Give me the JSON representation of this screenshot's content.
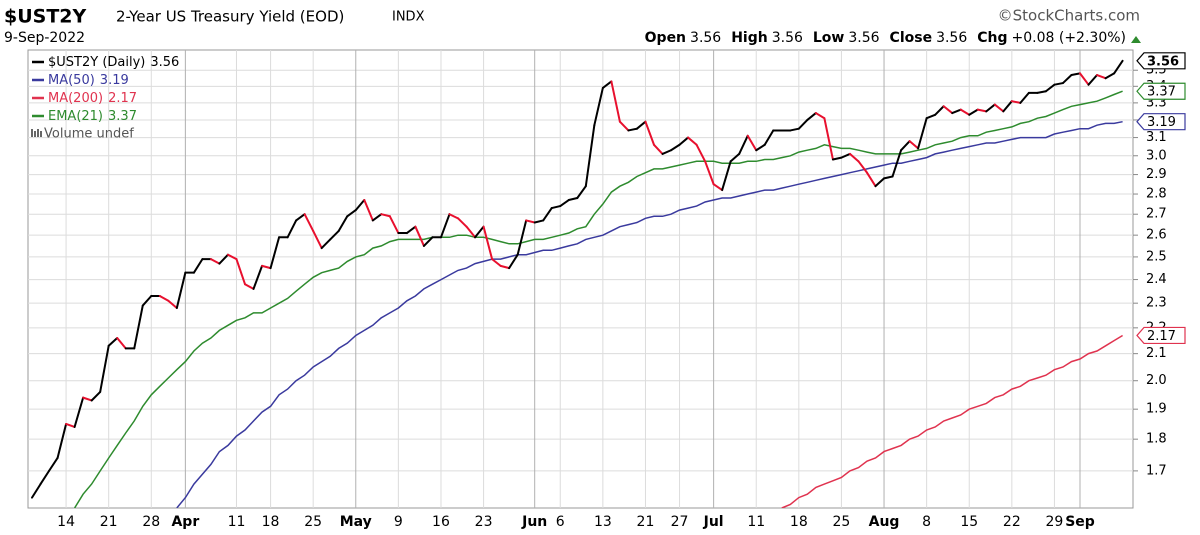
{
  "chart_data": {
    "type": "line",
    "header": {
      "symbol": "$UST2Y",
      "name": "2-Year US Treasury Yield (EOD)",
      "exchange": "INDX",
      "source": "©StockCharts.com",
      "date": "9-Sep-2022",
      "ohlc": [
        {
          "label": "Open",
          "value": 3.56
        },
        {
          "label": "High",
          "value": 3.56
        },
        {
          "label": "Low",
          "value": 3.56
        },
        {
          "label": "Close",
          "value": 3.56
        },
        {
          "label": "Chg",
          "value": "+0.08 (+2.30%)"
        }
      ]
    },
    "volume_legend": "Volume undef",
    "log_scale": true,
    "grid": true,
    "legend": "top-left",
    "ylim": [
      1.59,
      3.63
    ],
    "yticks": [
      1.7,
      1.8,
      1.9,
      {
        "value": 2,
        "label": "2.0"
      },
      2.1,
      2.2,
      2.3,
      2.4,
      2.5,
      2.6,
      2.7,
      2.8,
      2.9,
      {
        "value": 3,
        "label": "3.0"
      },
      3.1,
      3.2,
      3.3,
      3.4,
      3.5
    ],
    "categories": [
      null,
      null,
      null,
      null,
      "14",
      null,
      null,
      null,
      null,
      "21",
      null,
      null,
      null,
      null,
      "28",
      null,
      null,
      null,
      "Apr",
      null,
      null,
      null,
      null,
      null,
      "11",
      null,
      null,
      null,
      "18",
      null,
      null,
      null,
      null,
      "25",
      null,
      null,
      null,
      null,
      "May",
      null,
      null,
      null,
      null,
      "9",
      null,
      null,
      null,
      null,
      "16",
      null,
      null,
      null,
      null,
      "23",
      null,
      null,
      null,
      null,
      null,
      "Jun",
      null,
      null,
      "6",
      null,
      null,
      null,
      null,
      "13",
      null,
      null,
      null,
      null,
      "21",
      null,
      null,
      null,
      "27",
      null,
      null,
      null,
      "Jul",
      null,
      null,
      null,
      null,
      "11",
      null,
      null,
      null,
      null,
      "18",
      null,
      null,
      null,
      null,
      "25",
      null,
      null,
      null,
      null,
      "Aug",
      null,
      null,
      null,
      null,
      "8",
      null,
      null,
      null,
      null,
      "15",
      null,
      null,
      null,
      null,
      "22",
      null,
      null,
      null,
      null,
      "29",
      null,
      null,
      "Sep",
      null,
      null,
      null,
      null,
      null
    ],
    "series": [
      {
        "name": "$UST2Y (Daily)",
        "color": "#000000",
        "down_color": "#e8102e",
        "values": [
          1.62,
          1.66,
          1.7,
          1.74,
          1.85,
          1.84,
          1.94,
          1.93,
          1.96,
          2.13,
          2.16,
          2.12,
          2.12,
          2.29,
          2.33,
          2.33,
          2.31,
          2.28,
          2.43,
          2.43,
          2.49,
          2.49,
          2.47,
          2.51,
          2.49,
          2.38,
          2.36,
          2.46,
          2.45,
          2.59,
          2.59,
          2.67,
          2.7,
          2.62,
          2.54,
          2.58,
          2.62,
          2.69,
          2.72,
          2.77,
          2.67,
          2.7,
          2.69,
          2.61,
          2.61,
          2.64,
          2.55,
          2.59,
          2.59,
          2.7,
          2.68,
          2.64,
          2.59,
          2.64,
          2.49,
          2.46,
          2.45,
          2.51,
          2.67,
          2.66,
          2.67,
          2.73,
          2.74,
          2.77,
          2.78,
          2.84,
          3.17,
          3.39,
          3.43,
          3.19,
          3.14,
          3.15,
          3.19,
          3.06,
          3.01,
          3.03,
          3.06,
          3.1,
          3.06,
          2.97,
          2.85,
          2.82,
          2.97,
          3.01,
          3.11,
          3.03,
          3.06,
          3.14,
          3.14,
          3.14,
          3.15,
          3.2,
          3.24,
          3.21,
          2.98,
          2.99,
          3.01,
          2.97,
          2.91,
          2.84,
          2.88,
          2.89,
          3.03,
          3.08,
          3.04,
          3.21,
          3.23,
          3.28,
          3.24,
          3.26,
          3.23,
          3.26,
          3.25,
          3.29,
          3.25,
          3.31,
          3.3,
          3.36,
          3.36,
          3.37,
          3.41,
          3.42,
          3.47,
          3.48,
          3.41,
          3.47,
          3.45,
          3.48,
          3.56
        ]
      },
      {
        "name": "MA(50)",
        "color": "#3a3a9e",
        "values": [
          null,
          null,
          null,
          null,
          null,
          null,
          null,
          null,
          null,
          null,
          null,
          null,
          null,
          null,
          null,
          null,
          null,
          1.59,
          1.62,
          1.66,
          1.69,
          1.72,
          1.76,
          1.78,
          1.81,
          1.83,
          1.86,
          1.89,
          1.91,
          1.95,
          1.97,
          2.0,
          2.02,
          2.05,
          2.07,
          2.09,
          2.12,
          2.14,
          2.17,
          2.19,
          2.21,
          2.24,
          2.26,
          2.28,
          2.31,
          2.33,
          2.36,
          2.38,
          2.4,
          2.42,
          2.44,
          2.45,
          2.47,
          2.48,
          2.49,
          2.49,
          2.5,
          2.51,
          2.51,
          2.52,
          2.53,
          2.53,
          2.54,
          2.55,
          2.56,
          2.58,
          2.59,
          2.6,
          2.62,
          2.64,
          2.65,
          2.66,
          2.68,
          2.69,
          2.69,
          2.7,
          2.72,
          2.73,
          2.74,
          2.76,
          2.77,
          2.78,
          2.78,
          2.79,
          2.8,
          2.81,
          2.82,
          2.82,
          2.83,
          2.84,
          2.85,
          2.86,
          2.87,
          2.88,
          2.89,
          2.9,
          2.91,
          2.92,
          2.93,
          2.94,
          2.95,
          2.96,
          2.96,
          2.97,
          2.98,
          2.99,
          3.01,
          3.02,
          3.03,
          3.04,
          3.05,
          3.06,
          3.07,
          3.07,
          3.08,
          3.09,
          3.1,
          3.1,
          3.1,
          3.1,
          3.12,
          3.13,
          3.14,
          3.15,
          3.15,
          3.17,
          3.18,
          3.18,
          3.19
        ]
      },
      {
        "name": "MA(200)",
        "color": "#e0334f",
        "values": [
          null,
          null,
          null,
          null,
          null,
          null,
          null,
          null,
          null,
          null,
          null,
          null,
          null,
          null,
          null,
          null,
          null,
          null,
          null,
          null,
          null,
          null,
          null,
          null,
          null,
          null,
          null,
          null,
          null,
          null,
          null,
          null,
          null,
          null,
          null,
          null,
          null,
          null,
          null,
          null,
          null,
          null,
          null,
          null,
          null,
          null,
          null,
          null,
          null,
          null,
          null,
          null,
          null,
          null,
          null,
          null,
          null,
          null,
          null,
          null,
          null,
          null,
          null,
          null,
          null,
          null,
          null,
          null,
          null,
          null,
          null,
          null,
          null,
          null,
          null,
          null,
          null,
          null,
          null,
          null,
          null,
          null,
          null,
          null,
          null,
          null,
          null,
          null,
          1.59,
          1.6,
          1.62,
          1.63,
          1.65,
          1.66,
          1.67,
          1.68,
          1.7,
          1.71,
          1.73,
          1.74,
          1.76,
          1.77,
          1.78,
          1.8,
          1.81,
          1.83,
          1.84,
          1.86,
          1.87,
          1.88,
          1.9,
          1.91,
          1.92,
          1.94,
          1.95,
          1.97,
          1.98,
          2.0,
          2.01,
          2.02,
          2.04,
          2.05,
          2.07,
          2.08,
          2.1,
          2.11,
          2.13,
          2.15,
          2.17
        ]
      },
      {
        "name": "EMA(21)",
        "color": "#2e8b2e",
        "values": [
          null,
          null,
          null,
          null,
          null,
          1.59,
          1.63,
          1.66,
          1.7,
          1.74,
          1.78,
          1.82,
          1.86,
          1.91,
          1.95,
          1.98,
          2.01,
          2.04,
          2.07,
          2.11,
          2.14,
          2.16,
          2.19,
          2.21,
          2.23,
          2.24,
          2.26,
          2.26,
          2.28,
          2.3,
          2.32,
          2.35,
          2.38,
          2.41,
          2.43,
          2.44,
          2.45,
          2.48,
          2.5,
          2.51,
          2.54,
          2.55,
          2.57,
          2.58,
          2.58,
          2.58,
          2.58,
          2.59,
          2.59,
          2.59,
          2.6,
          2.6,
          2.59,
          2.59,
          2.58,
          2.57,
          2.56,
          2.56,
          2.57,
          2.58,
          2.58,
          2.59,
          2.6,
          2.61,
          2.63,
          2.64,
          2.7,
          2.75,
          2.81,
          2.84,
          2.86,
          2.89,
          2.91,
          2.93,
          2.93,
          2.94,
          2.95,
          2.96,
          2.97,
          2.97,
          2.97,
          2.96,
          2.96,
          2.96,
          2.97,
          2.97,
          2.98,
          2.98,
          2.99,
          3.0,
          3.02,
          3.03,
          3.04,
          3.06,
          3.05,
          3.04,
          3.04,
          3.03,
          3.02,
          3.01,
          3.01,
          3.01,
          3.01,
          3.02,
          3.03,
          3.04,
          3.06,
          3.07,
          3.08,
          3.1,
          3.11,
          3.11,
          3.13,
          3.14,
          3.15,
          3.16,
          3.18,
          3.19,
          3.21,
          3.22,
          3.24,
          3.26,
          3.28,
          3.29,
          3.3,
          3.31,
          3.33,
          3.35,
          3.37
        ]
      }
    ]
  }
}
